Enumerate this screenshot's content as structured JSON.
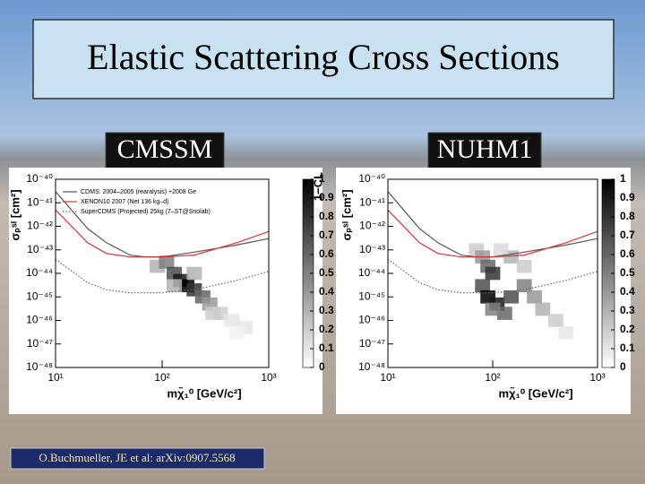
{
  "title": "Elastic Scattering Cross Sections",
  "labels": [
    "CMSSM",
    "NUHM1"
  ],
  "citation": "O.Buchmueller, JE et al: arXiv:0907.5568",
  "chart_data": [
    {
      "type": "line",
      "xscale": "log",
      "yscale": "log",
      "xlabel": "mχ̃₁⁰ [GeV/c²]",
      "ylabel": "σₚˢᴵ [cm²]",
      "zlabel": "1−CL",
      "xlim": [
        10,
        1000
      ],
      "ylim": [
        1e-48,
        1e-40
      ],
      "xticks": [
        {
          "value": 10,
          "label": "10¹"
        },
        {
          "value": 100,
          "label": "10²"
        },
        {
          "value": 1000,
          "label": "10³"
        }
      ],
      "yticks": [
        {
          "value": 1e-40,
          "label": "10⁻⁴⁰"
        },
        {
          "value": 1e-41,
          "label": "10⁻⁴¹"
        },
        {
          "value": 1e-42,
          "label": "10⁻⁴²"
        },
        {
          "value": 1e-43,
          "label": "10⁻⁴³"
        },
        {
          "value": 1e-44,
          "label": "10⁻⁴⁴"
        },
        {
          "value": 1e-45,
          "label": "10⁻⁴⁵"
        },
        {
          "value": 1e-46,
          "label": "10⁻⁴⁶"
        },
        {
          "value": 1e-47,
          "label": "10⁻⁴⁷"
        },
        {
          "value": 1e-48,
          "label": "10⁻⁴⁸"
        }
      ],
      "zlim": [
        0,
        1
      ],
      "zticks": [
        0,
        0.1,
        0.2,
        0.3,
        0.4,
        0.5,
        0.6,
        0.7,
        0.8,
        0.9,
        1
      ],
      "x": [
        10,
        20,
        30,
        50,
        70,
        100,
        200,
        500,
        1000
      ],
      "series": [
        {
          "name": "CDMS: 2004–2005 (rearalysis) +2008 Ge",
          "color": "#555555",
          "dash": "solid",
          "values": [
            3e-41,
            8e-43,
            2e-43,
            6e-44,
            5e-44,
            5e-44,
            8e-44,
            1.6e-43,
            3e-43
          ]
        },
        {
          "name": "XENON10 2007 (Net 136 kg–d)",
          "color": "#e03030",
          "dash": "solid",
          "values": [
            5e-42,
            2e-43,
            7e-44,
            5e-44,
            5e-44,
            5e-44,
            6e-44,
            2e-43,
            6e-43
          ]
        },
        {
          "name": "SuperCDMS (Projected) 25kg (7–ST@Snolab)",
          "color": "#666666",
          "dash": "dotted",
          "values": [
            4e-44,
            4e-45,
            2e-45,
            1.5e-45,
            1.5e-45,
            1.5e-45,
            2e-45,
            5e-45,
            1.2e-44
          ]
        }
      ],
      "cells": [
        {
          "x": 90,
          "y": 2e-44,
          "value": 0.3
        },
        {
          "x": 110,
          "y": 3e-44,
          "value": 0.5
        },
        {
          "x": 130,
          "y": 1e-44,
          "value": 0.7
        },
        {
          "x": 150,
          "y": 5e-45,
          "value": 0.9
        },
        {
          "x": 170,
          "y": 3e-45,
          "value": 1
        },
        {
          "x": 200,
          "y": 2e-45,
          "value": 0.8
        },
        {
          "x": 240,
          "y": 1e-45,
          "value": 0.6
        },
        {
          "x": 280,
          "y": 5e-46,
          "value": 0.4
        },
        {
          "x": 350,
          "y": 2e-46,
          "value": 0.2
        },
        {
          "x": 450,
          "y": 1e-46,
          "value": 0.1
        },
        {
          "x": 600,
          "y": 5e-47,
          "value": 0.1
        },
        {
          "x": 130,
          "y": 3e-45,
          "value": 0.3
        },
        {
          "x": 200,
          "y": 1e-44,
          "value": 0.3
        },
        {
          "x": 300,
          "y": 2e-46,
          "value": 0.2
        },
        {
          "x": 500,
          "y": 3e-47,
          "value": 0.05
        }
      ]
    },
    {
      "type": "line",
      "xscale": "log",
      "yscale": "log",
      "xlabel": "mχ̃₁⁰ [GeV/c²]",
      "ylabel": "σₚˢᴵ [cm²]",
      "xlim": [
        10,
        1000
      ],
      "ylim": [
        1e-48,
        1e-40
      ],
      "xticks": [
        {
          "value": 10,
          "label": "10¹"
        },
        {
          "value": 100,
          "label": "10²"
        },
        {
          "value": 1000,
          "label": "10³"
        }
      ],
      "yticks": [
        {
          "value": 1e-40,
          "label": "10⁻⁴⁰"
        },
        {
          "value": 1e-41,
          "label": "10⁻⁴¹"
        },
        {
          "value": 1e-42,
          "label": "10⁻⁴²"
        },
        {
          "value": 1e-43,
          "label": "10⁻⁴³"
        },
        {
          "value": 1e-44,
          "label": "10⁻⁴⁴"
        },
        {
          "value": 1e-45,
          "label": "10⁻⁴⁵"
        },
        {
          "value": 1e-46,
          "label": "10⁻⁴⁶"
        },
        {
          "value": 1e-47,
          "label": "10⁻⁴⁷"
        },
        {
          "value": 1e-48,
          "label": "10⁻⁴⁸"
        }
      ],
      "zlim": [
        0,
        1
      ],
      "zticks": [
        0,
        0.1,
        0.2,
        0.3,
        0.4,
        0.5,
        0.6,
        0.7,
        0.8,
        0.9,
        1
      ],
      "x": [
        10,
        20,
        30,
        50,
        70,
        100,
        200,
        500,
        1000
      ],
      "series": [
        {
          "color": "#555555",
          "dash": "solid",
          "values": [
            3e-41,
            8e-43,
            2e-43,
            6e-44,
            5e-44,
            5e-44,
            8e-44,
            1.6e-43,
            3e-43
          ]
        },
        {
          "color": "#e03030",
          "dash": "solid",
          "values": [
            5e-42,
            2e-43,
            7e-44,
            5e-44,
            5e-44,
            5e-44,
            6e-44,
            2e-43,
            6e-43
          ]
        },
        {
          "color": "#666666",
          "dash": "dotted",
          "values": [
            4e-44,
            4e-45,
            2e-45,
            1.5e-45,
            1.5e-45,
            1.5e-45,
            2e-45,
            5e-45,
            1.2e-44
          ]
        }
      ],
      "cells": [
        {
          "x": 70,
          "y": 1e-43,
          "value": 0.2
        },
        {
          "x": 80,
          "y": 5e-44,
          "value": 0.4
        },
        {
          "x": 90,
          "y": 2e-44,
          "value": 0.6
        },
        {
          "x": 100,
          "y": 1e-44,
          "value": 0.8
        },
        {
          "x": 80,
          "y": 3e-45,
          "value": 0.7
        },
        {
          "x": 90,
          "y": 1e-45,
          "value": 1
        },
        {
          "x": 110,
          "y": 5e-46,
          "value": 0.9
        },
        {
          "x": 130,
          "y": 2e-46,
          "value": 0.6
        },
        {
          "x": 150,
          "y": 1e-45,
          "value": 0.7
        },
        {
          "x": 200,
          "y": 3e-45,
          "value": 0.5
        },
        {
          "x": 250,
          "y": 1e-45,
          "value": 0.4
        },
        {
          "x": 300,
          "y": 3e-46,
          "value": 0.3
        },
        {
          "x": 400,
          "y": 1e-46,
          "value": 0.2
        },
        {
          "x": 150,
          "y": 5e-44,
          "value": 0.3
        },
        {
          "x": 200,
          "y": 2e-44,
          "value": 0.2
        },
        {
          "x": 120,
          "y": 1e-43,
          "value": 0.15
        },
        {
          "x": 500,
          "y": 3e-47,
          "value": 0.1
        },
        {
          "x": 100,
          "y": 3e-46,
          "value": 0.5
        }
      ]
    }
  ]
}
